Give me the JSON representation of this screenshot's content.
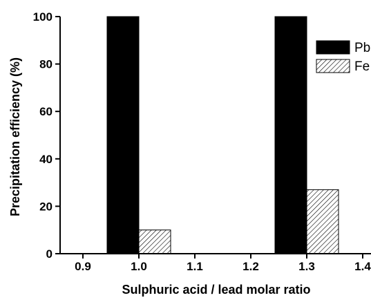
{
  "chart_data": {
    "type": "bar",
    "title": "",
    "xlabel": "Sulphuric acid / lead molar ratio",
    "ylabel": "Precipitation efficiency (%)",
    "categories": [
      "0.9",
      "1.0",
      "1.1",
      "1.2",
      "1.3",
      "1.4"
    ],
    "yticks": [
      "0",
      "20",
      "40",
      "60",
      "80",
      "100"
    ],
    "ylim": [
      0,
      100
    ],
    "grid": false,
    "legend_position": "top-right",
    "series": [
      {
        "name": "Pb",
        "fill": "solid",
        "color": "#000000",
        "values": [
          null,
          100,
          null,
          null,
          100,
          null
        ]
      },
      {
        "name": "Fe",
        "fill": "hatched",
        "color": "#000000",
        "values": [
          null,
          10,
          null,
          null,
          27,
          null
        ]
      }
    ]
  }
}
